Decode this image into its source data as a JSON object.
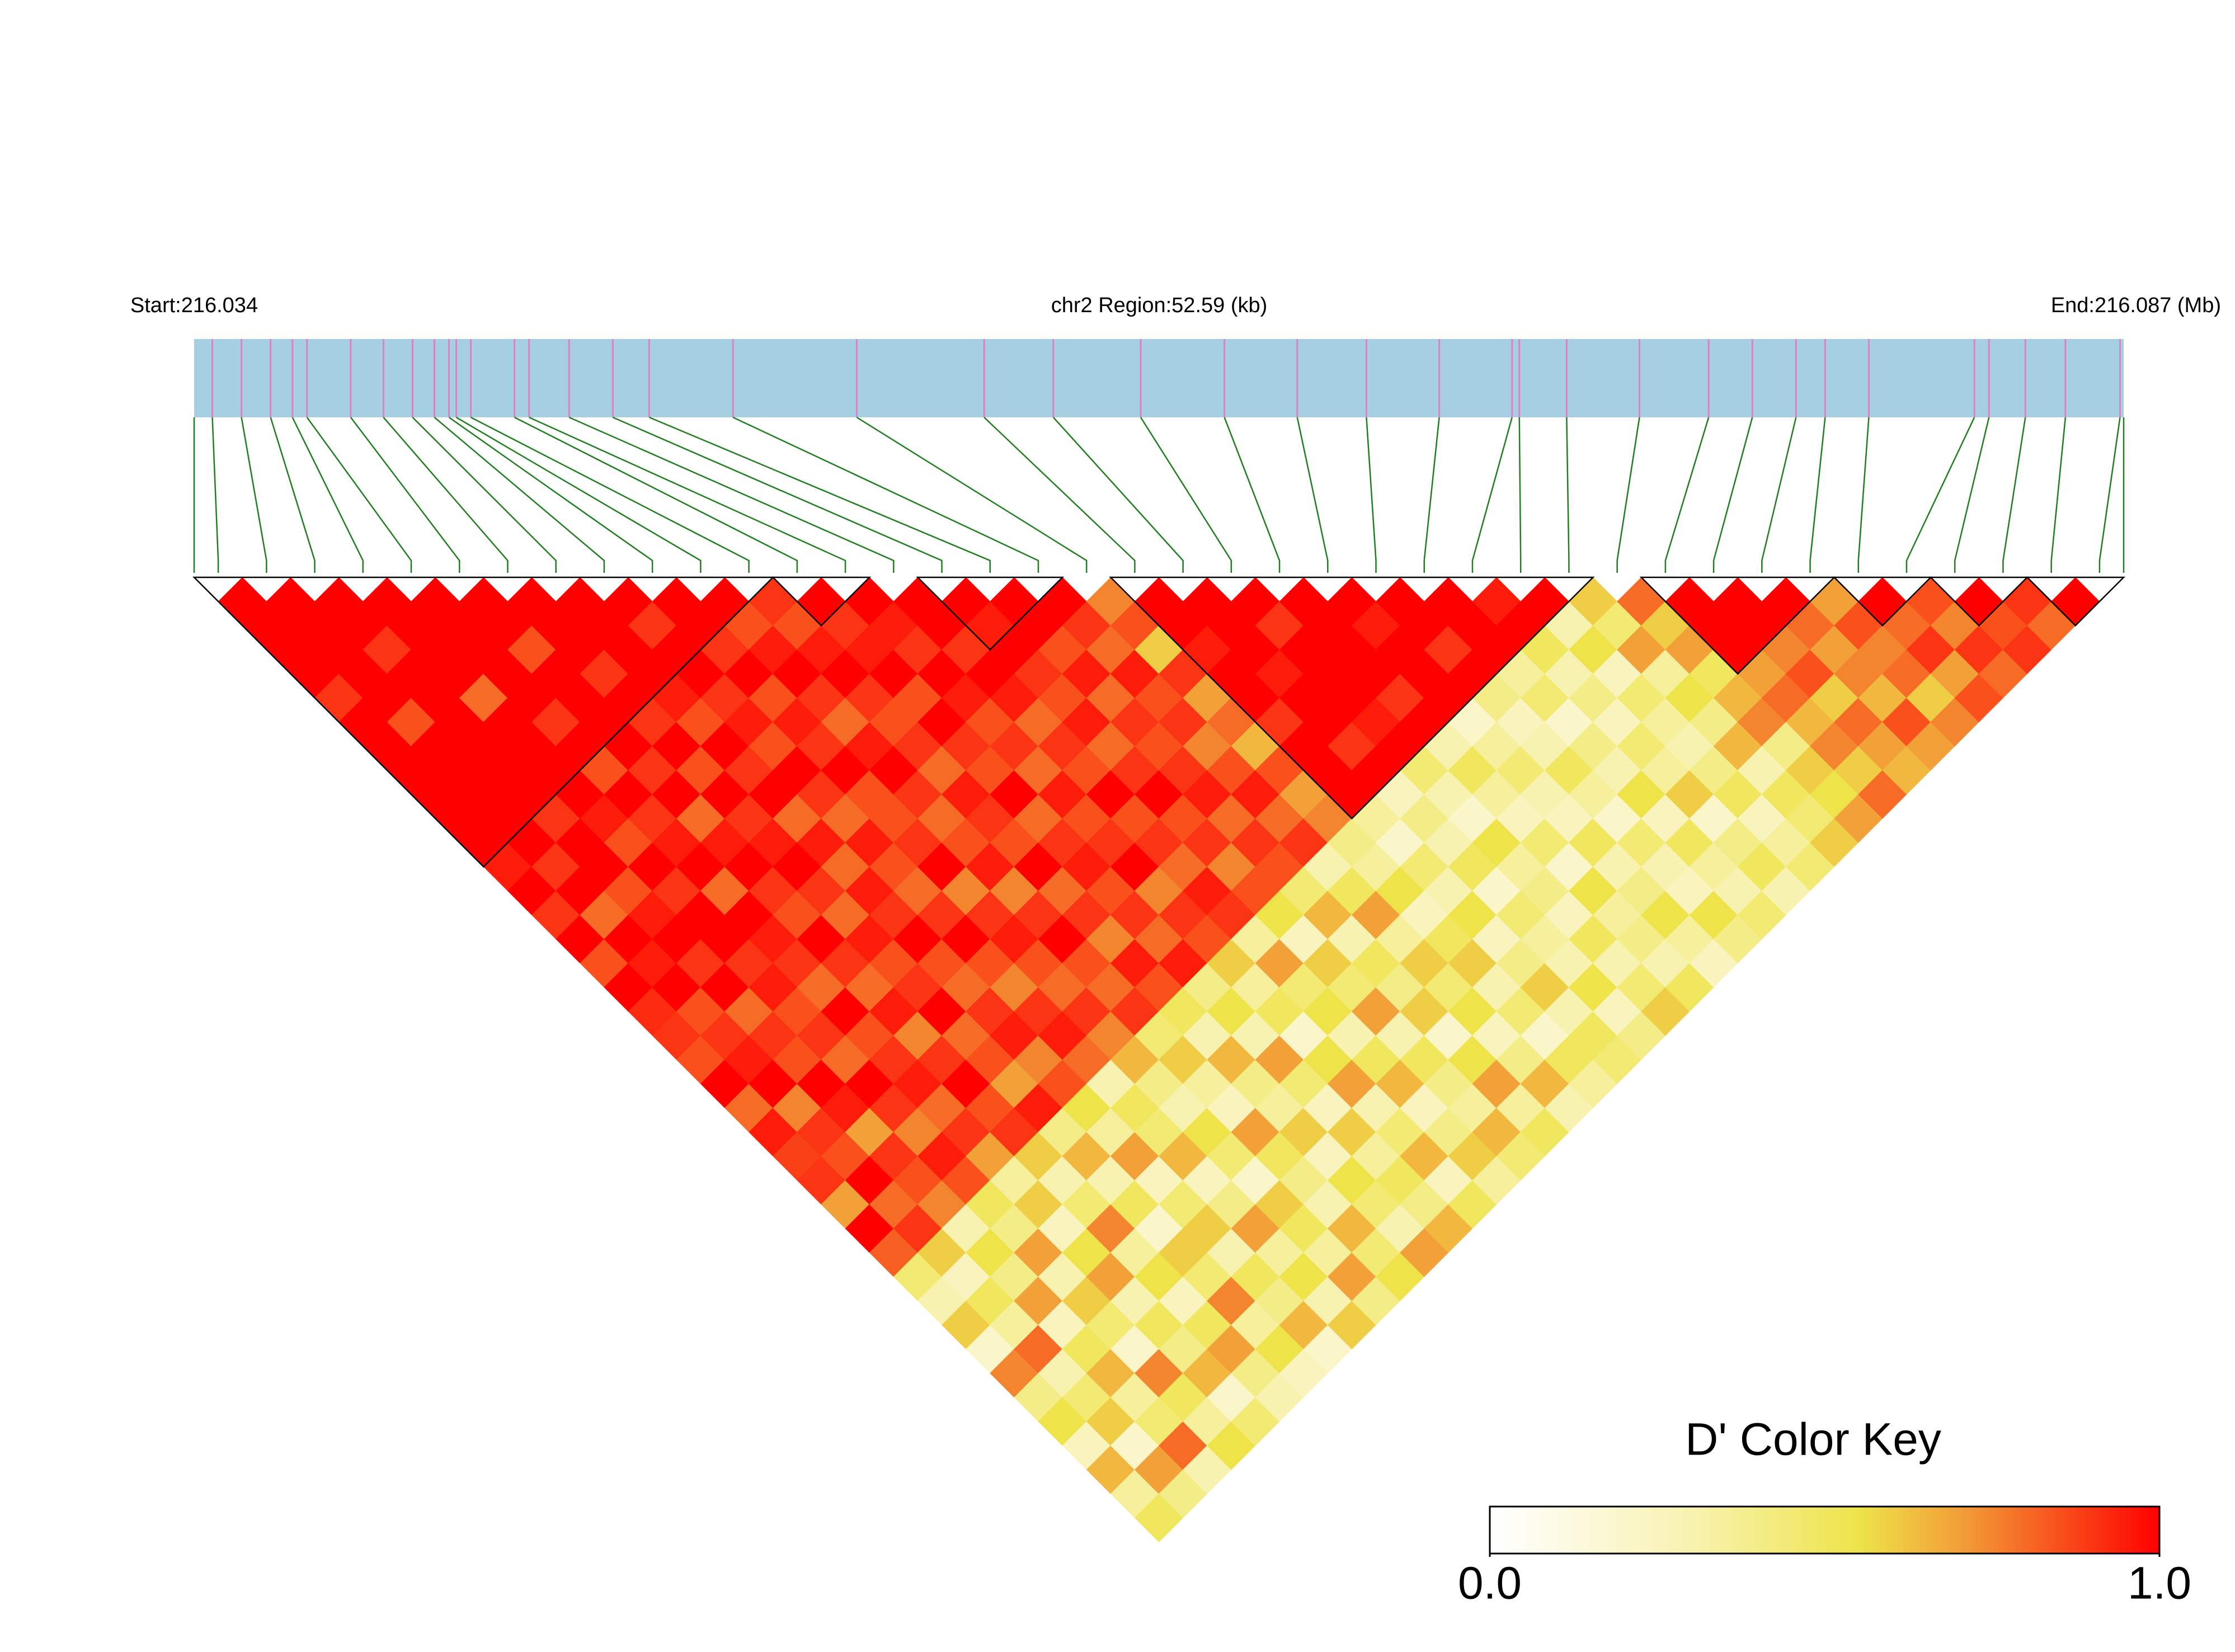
{
  "chart_data": {
    "type": "ld_heatmap",
    "start_label": "Start:216.034",
    "region_label": "chr2 Region:52.59 (kb)",
    "end_label": "End:216.087 (Mb)",
    "key_title": "D' Color Key",
    "key_ticks": [
      {
        "value": 0,
        "label": "0.0"
      },
      {
        "value": 1,
        "label": "1.0"
      }
    ],
    "xlim": [
      216.034,
      216.087
    ],
    "bar_color": "#a6cfe2",
    "snp_line_color": "#e07fc4",
    "connector_color": "#1f7f1f",
    "colorscale": [
      {
        "value": 0,
        "color": "#ffffff"
      },
      {
        "value": 0.3,
        "color": "#f8f2b0"
      },
      {
        "value": 0.55,
        "color": "#eee44a"
      },
      {
        "value": 0.7,
        "color": "#f2a038"
      },
      {
        "value": 1,
        "color": "#ff0000"
      }
    ],
    "positions": [
      216.0345,
      216.0353,
      216.0361,
      216.0367,
      216.0371,
      216.0383,
      216.0392,
      216.04,
      216.0406,
      216.041,
      216.0412,
      216.0416,
      216.0428,
      216.0432,
      216.0443,
      216.0455,
      216.0465,
      216.0488,
      216.0522,
      216.0557,
      216.0576,
      216.06,
      216.0623,
      216.0643,
      216.0662,
      216.0682,
      216.0702,
      216.0704,
      216.0717,
      216.0737,
      216.0756,
      216.0768,
      216.078,
      216.0788,
      216.08,
      216.0829,
      216.0833,
      216.0843,
      216.0854,
      216.0869
    ],
    "blocks": [
      [
        0,
        11
      ],
      [
        12,
        13
      ],
      [
        15,
        17
      ],
      [
        19,
        28
      ],
      [
        30,
        33
      ],
      [
        34,
        35
      ],
      [
        36,
        37
      ],
      [
        38,
        39
      ]
    ],
    "dprime": [
      [
        1,
        1,
        1,
        1,
        0.9,
        1,
        1,
        1,
        1,
        1,
        1,
        0.95,
        1,
        0.9,
        1,
        0.85,
        1,
        0.92,
        0.9,
        0.85,
        1,
        0.8,
        0.95,
        0.88,
        0.9,
        0.7,
        1,
        0.82,
        0.45,
        0.3,
        0.6,
        0.2,
        0.75,
        0.4,
        0.55,
        0.25,
        0.65,
        0.35,
        0.5
      ],
      [
        1,
        1,
        1,
        1,
        1,
        0.85,
        1,
        1,
        1,
        1,
        1,
        0.9,
        1,
        0.8,
        1,
        0.95,
        1,
        0.85,
        0.9,
        0.95,
        1,
        0.75,
        0.9,
        0.85,
        1,
        0.8,
        0.9,
        0.6,
        0.25,
        0.5,
        0.35,
        0.8,
        0.3,
        0.45,
        0.6,
        0.2,
        0.7,
        0.4
      ],
      [
        1,
        1,
        0.9,
        1,
        1,
        1,
        1,
        1,
        1,
        0.9,
        1,
        1,
        0.85,
        0.95,
        1,
        0.9,
        1,
        0.8,
        0.9,
        0.85,
        1,
        0.95,
        0.7,
        0.9,
        0.85,
        0.75,
        0.3,
        0.55,
        0.4,
        0.7,
        0.25,
        0.5,
        0.65,
        0.35,
        0.45,
        0.8,
        0.3
      ],
      [
        1,
        1,
        1,
        1,
        0.8,
        1,
        1,
        1,
        1,
        0.95,
        0.85,
        1,
        0.9,
        1,
        1,
        0.9,
        0.95,
        0.85,
        0.9,
        0.8,
        1,
        0.9,
        0.75,
        0.95,
        0.85,
        0.5,
        0.4,
        0.7,
        0.3,
        0.6,
        0.45,
        0.2,
        0.75,
        0.5,
        0.35,
        0.55
      ],
      [
        1,
        1,
        1,
        1,
        1,
        0.9,
        1,
        0.85,
        1,
        0.9,
        0.95,
        1,
        0.8,
        1,
        0.95,
        0.9,
        0.8,
        1,
        0.85,
        0.9,
        0.95,
        0.8,
        0.9,
        0.7,
        0.35,
        0.6,
        0.25,
        0.55,
        0.7,
        0.3,
        0.5,
        0.4,
        0.65,
        0.2,
        0.45
      ],
      [
        1,
        1,
        0.85,
        1,
        1,
        1,
        1,
        0.9,
        1,
        0.8,
        0.95,
        1,
        0.9,
        0.85,
        1,
        0.9,
        0.8,
        0.95,
        0.75,
        0.9,
        1,
        0.85,
        0.9,
        0.6,
        0.3,
        0.45,
        0.75,
        0.35,
        0.55,
        0.25,
        0.5,
        0.7,
        0.4,
        0.3
      ],
      [
        1,
        1,
        1,
        0.9,
        1,
        0.9,
        1,
        0.85,
        1,
        0.9,
        0.95,
        1,
        0.9,
        0.8,
        0.95,
        0.85,
        0.9,
        1,
        0.8,
        0.85,
        0.7,
        0.95,
        0.4,
        0.65,
        0.3,
        0.5,
        0.2,
        0.6,
        0.45,
        0.75,
        0.35,
        0.55,
        0.25
      ],
      [
        1,
        1,
        1,
        1,
        0.95,
        0.85,
        1,
        0.9,
        1,
        0.8,
        0.95,
        0.8,
        0.95,
        0.9,
        1,
        0.85,
        0.8,
        0.9,
        0.95,
        0.75,
        0.85,
        0.55,
        0.35,
        0.7,
        0.25,
        0.45,
        0.6,
        0.3,
        0.5,
        0.4,
        0.65,
        0.2
      ],
      [
        1,
        0.9,
        1,
        1,
        0.9,
        0.95,
        0.85,
        1,
        0.9,
        0.8,
        0.95,
        0.85,
        0.8,
        0.9,
        1,
        0.85,
        0.75,
        0.9,
        0.95,
        0.8,
        0.3,
        0.5,
        0.45,
        0.65,
        0.25,
        0.4,
        0.7,
        0.35,
        0.55,
        0.3,
        0.6
      ],
      [
        1,
        1,
        0.9,
        1,
        0.85,
        0.95,
        0.9,
        1,
        0.85,
        0.85,
        0.9,
        1,
        0.75,
        0.9,
        0.95,
        0.85,
        0.8,
        0.9,
        0.75,
        0.65,
        0.4,
        0.3,
        0.55,
        0.45,
        0.2,
        0.6,
        0.5,
        0.35,
        0.7,
        0.4
      ],
      [
        1,
        0.85,
        0.95,
        1,
        0.9,
        0.8,
        0.95,
        1,
        0.9,
        0.8,
        0.85,
        0.95,
        0.75,
        0.9,
        1,
        0.85,
        0.8,
        0.9,
        0.45,
        0.6,
        0.35,
        0.25,
        0.7,
        0.5,
        0.4,
        0.3,
        0.65,
        0.45,
        0.55
      ],
      [
        0.9,
        0.85,
        0.95,
        1,
        0.9,
        0.85,
        0.9,
        0.8,
        0.95,
        0.9,
        0.85,
        1,
        0.8,
        0.9,
        0.75,
        0.95,
        0.85,
        0.5,
        0.3,
        0.65,
        0.4,
        0.35,
        0.6,
        0.25,
        0.55,
        0.45,
        0.3,
        0.7
      ],
      [
        1,
        0.9,
        0.95,
        1,
        0.85,
        1,
        0.9,
        0.85,
        1,
        0.8,
        0.9,
        0.95,
        0.85,
        0.9,
        0.8,
        0.95,
        0.4,
        0.55,
        0.3,
        0.7,
        0.45,
        0.25,
        0.6,
        0.35,
        0.5,
        0.4,
        0.65
      ],
      [
        1,
        0.95,
        0.9,
        1,
        0.95,
        0.85,
        0.9,
        0.8,
        0.95,
        0.85,
        0.9,
        1,
        0.75,
        0.9,
        0.85,
        0.6,
        0.35,
        0.5,
        0.2,
        0.55,
        0.7,
        0.3,
        0.45,
        0.65,
        0.25,
        0.5
      ],
      [
        1,
        1,
        0.9,
        1,
        0.95,
        0.8,
        0.9,
        0.85,
        1,
        0.85,
        0.9,
        0.8,
        0.95,
        0.9,
        0.35,
        0.7,
        0.45,
        0.55,
        0.3,
        0.5,
        0.65,
        0.25,
        0.4,
        0.6,
        0.35
      ],
      [
        1,
        0.95,
        1,
        0.9,
        0.85,
        0.95,
        0.8,
        0.9,
        1,
        0.85,
        0.9,
        0.75,
        0.85,
        0.55,
        0.25,
        0.6,
        0.45,
        0.7,
        0.3,
        0.5,
        0.4,
        0.35,
        0.65,
        0.45
      ],
      [
        1,
        1,
        0.85,
        0.95,
        0.8,
        0.9,
        0.85,
        0.9,
        0.95,
        0.8,
        0.9,
        0.85,
        0.45,
        0.65,
        0.3,
        0.5,
        0.4,
        0.6,
        0.2,
        0.55,
        0.7,
        0.35,
        0.5
      ],
      [
        1,
        0.9,
        0.8,
        0.95,
        0.85,
        0.9,
        0.75,
        0.85,
        0.95,
        0.8,
        0.9,
        0.3,
        0.5,
        0.7,
        0.35,
        0.6,
        0.45,
        0.55,
        0.25,
        0.4,
        0.65,
        0.3
      ],
      [
        0.75,
        0.85,
        0.6,
        0.9,
        0.7,
        0.8,
        0.65,
        0.85,
        0.7,
        0.75,
        0.4,
        0.35,
        0.55,
        0.25,
        0.5,
        0.6,
        0.3,
        0.45,
        0.2,
        0.5,
        0.35
      ],
      [
        1,
        1,
        0.95,
        1,
        1,
        0.9,
        1,
        1,
        1,
        0.35,
        0.2,
        0.45,
        0.3,
        0.55,
        0.25,
        0.4,
        0.6,
        0.3,
        0.5,
        0.45
      ],
      [
        1,
        1,
        1,
        0.95,
        1,
        1,
        0.9,
        1,
        0.25,
        0.4,
        0.3,
        0.5,
        0.2,
        0.45,
        0.35,
        0.3,
        0.55,
        0.25,
        0.4
      ],
      [
        1,
        0.9,
        1,
        1,
        1,
        0.95,
        1,
        0.45,
        0.3,
        0.2,
        0.55,
        0.35,
        0.4,
        0.25,
        0.5,
        0.3,
        0.45,
        0.6
      ],
      [
        1,
        1,
        1,
        1,
        0.9,
        1,
        0.3,
        0.5,
        0.35,
        0.25,
        0.45,
        0.2,
        0.55,
        0.35,
        0.4,
        0.3,
        0.5
      ],
      [
        1,
        0.95,
        1,
        1,
        1,
        0.2,
        0.35,
        0.45,
        0.3,
        0.25,
        0.5,
        0.3,
        0.4,
        0.55,
        0.35,
        0.25
      ],
      [
        1,
        1,
        0.9,
        1,
        0.4,
        0.25,
        0.3,
        0.5,
        0.35,
        0.2,
        0.45,
        0.3,
        0.25,
        0.55,
        0.4
      ],
      [
        1,
        1,
        1,
        0.35,
        0.45,
        0.2,
        0.4,
        0.3,
        0.55,
        0.25,
        0.5,
        0.35,
        0.3,
        0.45
      ],
      [
        0.95,
        1,
        0.5,
        0.3,
        0.4,
        0.25,
        0.45,
        0.35,
        0.6,
        0.2,
        0.4,
        0.5,
        0.3
      ],
      [
        1,
        0.3,
        0.55,
        0.25,
        0.45,
        0.35,
        0.3,
        0.4,
        0.5,
        0.25,
        0.35,
        0.45
      ],
      [
        0.6,
        0.45,
        0.7,
        0.35,
        0.55,
        0.4,
        0.65,
        0.3,
        0.5,
        0.45,
        0.6
      ],
      [
        0.8,
        0.6,
        0.7,
        0.5,
        0.65,
        0.75,
        0.4,
        0.6,
        0.55,
        0.7
      ],
      [
        1,
        1,
        1,
        0.7,
        0.8,
        0.65,
        0.75,
        0.6,
        0.8
      ],
      [
        1,
        1,
        0.75,
        0.85,
        0.6,
        0.8,
        0.7,
        0.65
      ],
      [
        1,
        0.8,
        0.7,
        0.75,
        0.65,
        0.85,
        0.7
      ],
      [
        0.7,
        0.85,
        0.75,
        0.8,
        0.6,
        0.75
      ],
      [
        1,
        0.8,
        0.9,
        0.7,
        0.85
      ],
      [
        0.85,
        0.75,
        0.9,
        0.8
      ],
      [
        1,
        0.85,
        0.9
      ],
      [
        0.9,
        0.8
      ],
      [
        1
      ]
    ]
  }
}
